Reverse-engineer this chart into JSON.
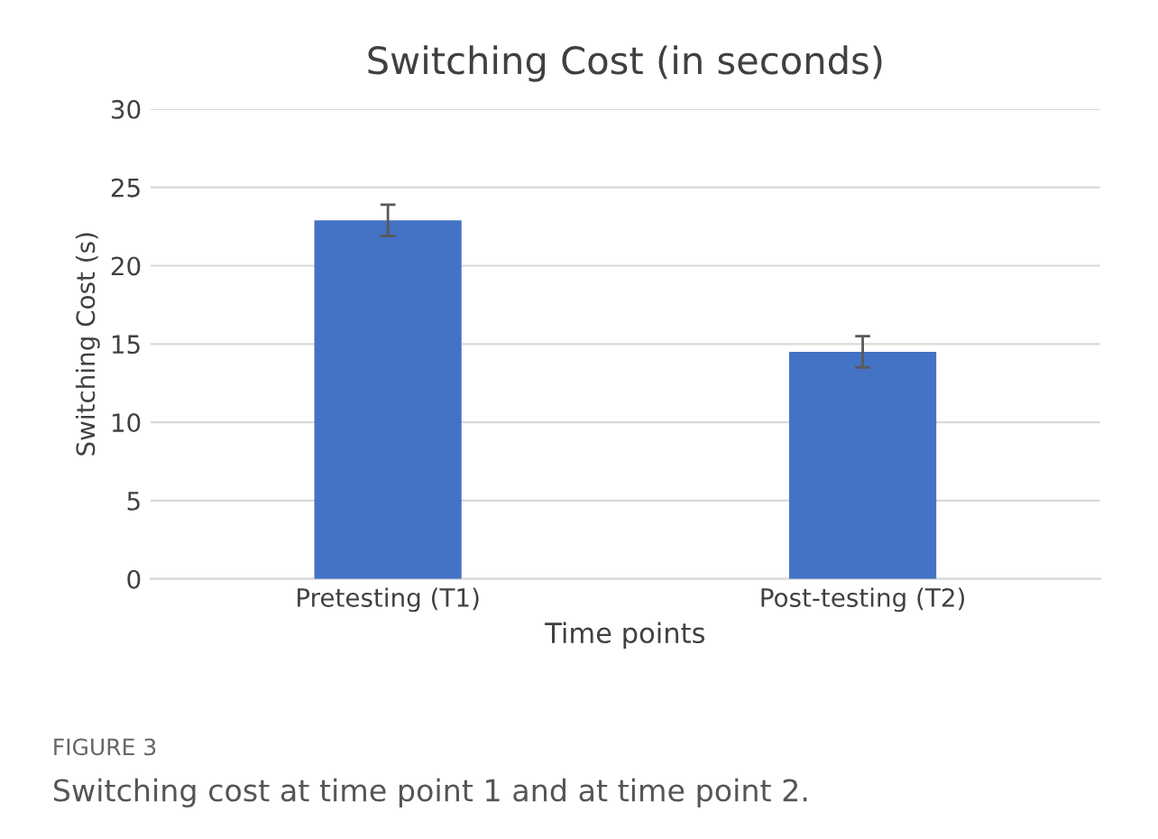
{
  "chart_data": {
    "type": "bar",
    "title": "Switching Cost (in seconds)",
    "xlabel": "Time points",
    "ylabel": "Switching Cost (s)",
    "categories": [
      "Pretesting (T1)",
      "Post-testing (T2)"
    ],
    "values": [
      22.9,
      14.5
    ],
    "errors": [
      1.0,
      1.0
    ],
    "color": "#4472c4",
    "ylim": [
      0,
      30
    ],
    "yticks": [
      0,
      5,
      10,
      15,
      20,
      25,
      30
    ],
    "grid": "y",
    "annotations": [
      "FIGURE 3",
      "Switching cost at time point 1 and at time point 2."
    ]
  }
}
